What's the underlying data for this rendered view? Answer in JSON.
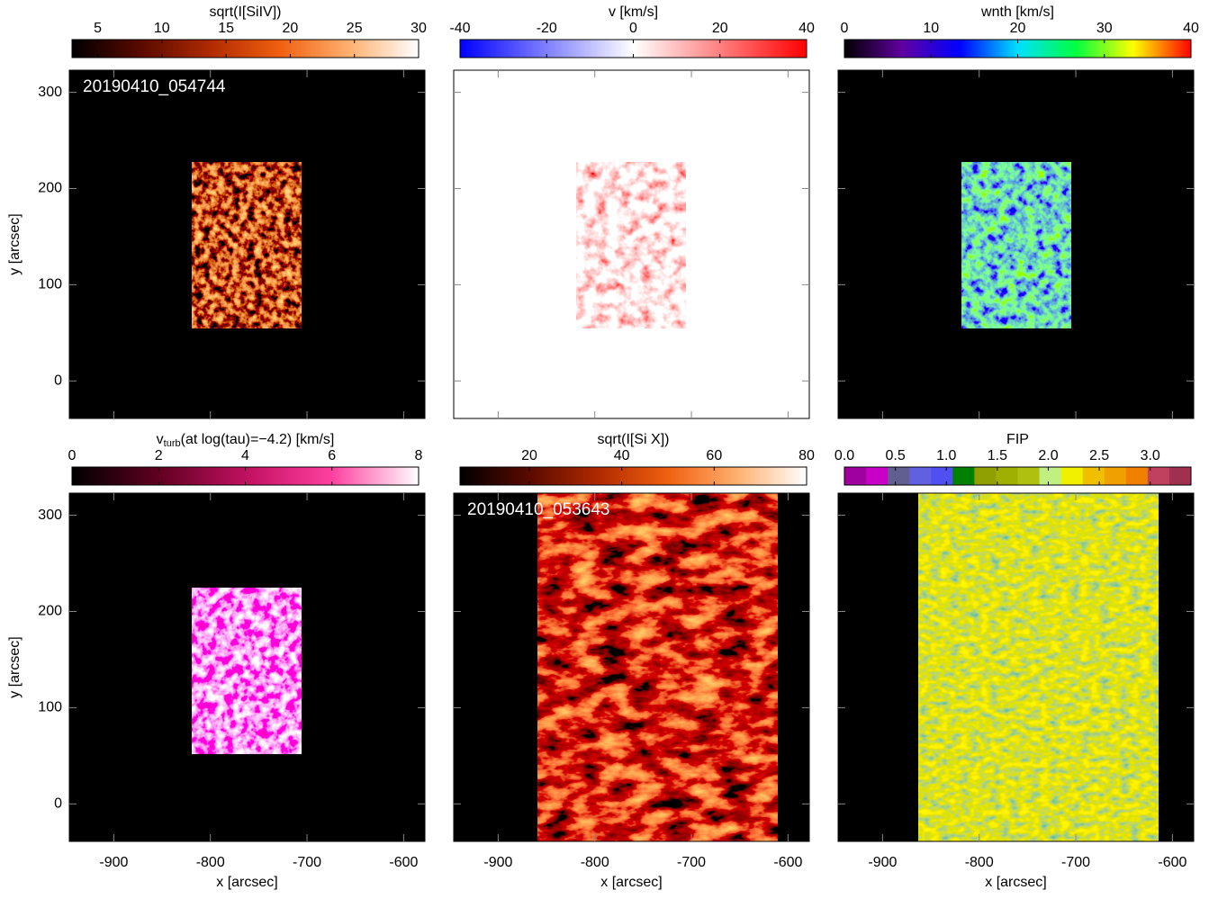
{
  "chart_data": [
    {
      "type": "image",
      "annotation": "20190410_054744",
      "colorbar": {
        "label": "sqrt(I[SiIV])",
        "lim": [
          3,
          30
        ],
        "ticks": [
          5,
          10,
          15,
          20,
          25,
          30
        ],
        "colors": [
          "#000000",
          "#5a0a00",
          "#b02a00",
          "#f06010",
          "#ffb070",
          "#ffffff"
        ]
      },
      "xlim": [
        -946,
        -578
      ],
      "xticks": [
        -900,
        -800,
        -700,
        -600
      ],
      "show_xtick_labels": false,
      "ylim": [
        -39,
        323
      ],
      "yticks": [
        0,
        100,
        200,
        300
      ],
      "show_ytick_labels": true,
      "ylabel": "y [arcsec]"
    },
    {
      "type": "image",
      "colorbar": {
        "label": "v [km/s]",
        "lim": [
          -40,
          40
        ],
        "ticks": [
          -40,
          -20,
          0,
          20,
          40
        ],
        "colors": [
          "#0000ff",
          "#ffffff",
          "#ff0000"
        ]
      },
      "xlim": [
        -946,
        -578
      ],
      "xticks": [
        -900,
        -800,
        -700,
        -600
      ],
      "show_xtick_labels": false,
      "ylim": [
        -39,
        323
      ],
      "yticks": [
        0,
        100,
        200,
        300
      ],
      "show_ytick_labels": false
    },
    {
      "type": "image",
      "colorbar": {
        "label": "wnth [km/s]",
        "lim": [
          0,
          40
        ],
        "ticks": [
          0,
          10,
          20,
          30,
          40
        ],
        "colors": [
          "#000000",
          "#6000a0",
          "#0000ff",
          "#00e0ff",
          "#00ff40",
          "#ffff00",
          "#ff0000"
        ]
      },
      "xlim": [
        -946,
        -578
      ],
      "xticks": [
        -900,
        -800,
        -700,
        -600
      ],
      "show_xtick_labels": false,
      "ylim": [
        -39,
        323
      ],
      "yticks": [
        0,
        100,
        200,
        300
      ],
      "show_ytick_labels": false
    },
    {
      "type": "image",
      "colorbar": {
        "label": "v",
        "label_sub": "turb",
        "label_rest": "(at log(tau)=−4.2) [km/s]",
        "lim": [
          0,
          8
        ],
        "ticks": [
          0,
          2,
          4,
          6,
          8
        ],
        "colors": [
          "#000000",
          "#600020",
          "#c01060",
          "#ff40a0",
          "#ffffff"
        ]
      },
      "xlim": [
        -946,
        -578
      ],
      "xticks": [
        -900,
        -800,
        -700,
        -600
      ],
      "show_xtick_labels": true,
      "xlabel": "x [arcsec]",
      "ylim": [
        -39,
        323
      ],
      "yticks": [
        0,
        100,
        200,
        300
      ],
      "show_ytick_labels": true,
      "ylabel": "y [arcsec]"
    },
    {
      "type": "image",
      "annotation": "20190410_053643",
      "colorbar": {
        "label": "sqrt(I[Si X])",
        "lim": [
          5,
          80
        ],
        "ticks": [
          20,
          40,
          60,
          80
        ],
        "colors": [
          "#000000",
          "#5a0a00",
          "#b02a00",
          "#f06010",
          "#ffb070",
          "#ffffff"
        ]
      },
      "xlim": [
        -946,
        -578
      ],
      "xticks": [
        -900,
        -800,
        -700,
        -600
      ],
      "show_xtick_labels": true,
      "xlabel": "x [arcsec]",
      "ylim": [
        -39,
        323
      ],
      "yticks": [
        0,
        100,
        200,
        300
      ],
      "show_ytick_labels": false
    },
    {
      "type": "image",
      "colorbar": {
        "label": "FIP",
        "lim": [
          0,
          3.4
        ],
        "discrete": true,
        "ticks": [
          {
            "value": 0,
            "label": "0.0"
          },
          {
            "value": 0.5,
            "label": "0.5"
          },
          {
            "value": 1,
            "label": "1.0"
          },
          {
            "value": 1.5,
            "label": "1.5"
          },
          {
            "value": 2,
            "label": "2.0"
          },
          {
            "value": 2.5,
            "label": "2.5"
          },
          {
            "value": 3,
            "label": "3.0"
          }
        ],
        "colors": [
          "#a000a0",
          "#c800c8",
          "#606090",
          "#6060e0",
          "#5050f0",
          "#008000",
          "#90a000",
          "#a0b000",
          "#b0c010",
          "#c0f080",
          "#f0f000",
          "#f0c000",
          "#f0a000",
          "#f08000",
          "#c04060",
          "#a03050"
        ]
      },
      "xlim": [
        -946,
        -578
      ],
      "xticks": [
        -900,
        -800,
        -700,
        -600
      ],
      "show_xtick_labels": true,
      "xlabel": "x [arcsec]",
      "ylim": [
        -39,
        323
      ],
      "yticks": [
        0,
        100,
        200,
        300
      ],
      "show_ytick_labels": false
    }
  ]
}
